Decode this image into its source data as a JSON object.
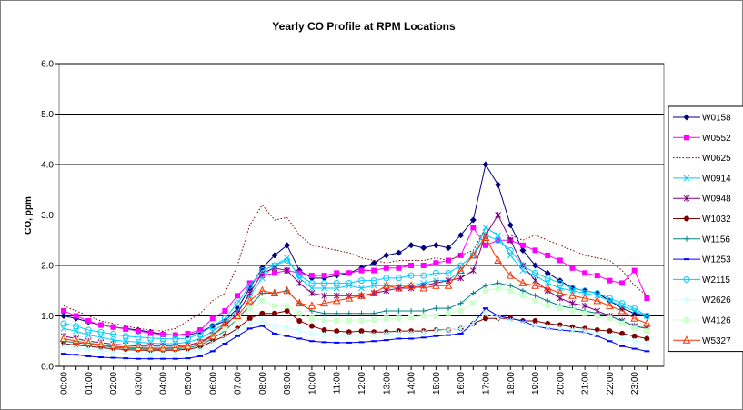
{
  "chart_data": {
    "type": "line",
    "title": "Yearly CO Profile at RPM Locations",
    "y_label": "CO, ppm",
    "categories": [
      "00:00",
      null,
      "01:00",
      null,
      "02:00",
      null,
      "03:00",
      null,
      "04:00",
      null,
      "05:00",
      null,
      "06:00",
      null,
      "07:00",
      null,
      "08:00",
      null,
      "09:00",
      null,
      "10:00",
      null,
      "11:00",
      null,
      "12:00",
      null,
      "13:00",
      null,
      "14:00",
      null,
      "15:00",
      null,
      "16:00",
      null,
      "17:00",
      null,
      "18:00",
      null,
      "19:00",
      null,
      "20:00",
      null,
      "21:00",
      null,
      "22:00",
      null,
      "23:00",
      null
    ],
    "ylim": [
      0,
      6
    ],
    "yticks": [
      {
        "value": 0,
        "label": "0.0"
      },
      {
        "value": 1,
        "label": "1.0"
      },
      {
        "value": 2,
        "label": "2.0"
      },
      {
        "value": 3,
        "label": "3.0"
      },
      {
        "value": 4,
        "label": "4.0"
      },
      {
        "value": 5,
        "label": "5.0"
      },
      {
        "value": 6,
        "label": "6.0"
      }
    ],
    "grid": true,
    "legend": "right",
    "series": [
      {
        "name": "W0158",
        "color": "#000080",
        "marker": "diamond",
        "values": [
          1.0,
          0.95,
          0.88,
          0.82,
          0.78,
          0.75,
          0.72,
          0.68,
          0.64,
          0.62,
          0.62,
          0.68,
          0.8,
          0.9,
          1.15,
          1.55,
          1.95,
          2.2,
          2.4,
          1.9,
          1.75,
          1.75,
          1.8,
          1.85,
          1.95,
          2.05,
          2.2,
          2.25,
          2.4,
          2.35,
          2.4,
          2.35,
          2.6,
          2.9,
          4.0,
          3.6,
          2.8,
          2.3,
          2.0,
          1.85,
          1.7,
          1.55,
          1.5,
          1.45,
          1.3,
          1.15,
          1.05,
          1.0
        ]
      },
      {
        "name": "W0552",
        "color": "#ff00ff",
        "marker": "square",
        "values": [
          1.1,
          1.0,
          0.9,
          0.82,
          0.78,
          0.74,
          0.7,
          0.66,
          0.63,
          0.62,
          0.65,
          0.72,
          0.95,
          1.1,
          1.4,
          1.65,
          1.8,
          1.85,
          1.9,
          1.85,
          1.8,
          1.8,
          1.85,
          1.85,
          1.9,
          1.9,
          1.95,
          1.95,
          2.0,
          2.0,
          2.05,
          2.1,
          2.2,
          2.75,
          2.4,
          2.5,
          2.5,
          2.4,
          2.3,
          2.2,
          2.1,
          1.95,
          1.85,
          1.8,
          1.7,
          1.65,
          1.9,
          1.35
        ]
      },
      {
        "name": "W0625",
        "color": "#800000",
        "marker": "none",
        "dash": "dotted",
        "values": [
          1.2,
          1.1,
          1.0,
          0.9,
          0.85,
          0.8,
          0.75,
          0.72,
          0.7,
          0.75,
          0.9,
          1.05,
          1.3,
          1.45,
          2.0,
          2.8,
          3.2,
          2.9,
          2.95,
          2.6,
          2.4,
          2.35,
          2.3,
          2.25,
          2.15,
          2.1,
          2.05,
          2.1,
          2.1,
          2.1,
          2.15,
          2.1,
          2.2,
          2.3,
          2.75,
          2.6,
          2.6,
          2.5,
          2.6,
          2.5,
          2.4,
          2.3,
          2.2,
          2.15,
          2.1,
          1.9,
          1.6,
          1.4
        ]
      },
      {
        "name": "W0914",
        "color": "#00ccff",
        "marker": "x",
        "values": [
          0.75,
          0.7,
          0.62,
          0.58,
          0.52,
          0.5,
          0.48,
          0.46,
          0.45,
          0.45,
          0.48,
          0.55,
          0.7,
          0.85,
          1.1,
          1.4,
          1.75,
          2.0,
          2.15,
          1.75,
          1.55,
          1.55,
          1.55,
          1.6,
          1.55,
          1.6,
          1.6,
          1.6,
          1.6,
          1.65,
          1.7,
          1.7,
          1.9,
          2.2,
          2.75,
          2.6,
          2.2,
          1.9,
          1.8,
          1.65,
          1.55,
          1.5,
          1.45,
          1.4,
          1.3,
          1.2,
          1.1,
          1.0
        ]
      },
      {
        "name": "W0948",
        "color": "#800080",
        "marker": "star",
        "values": [
          0.6,
          0.55,
          0.5,
          0.47,
          0.44,
          0.42,
          0.4,
          0.4,
          0.4,
          0.4,
          0.42,
          0.48,
          0.62,
          0.8,
          1.05,
          1.45,
          1.85,
          1.95,
          1.9,
          1.65,
          1.45,
          1.4,
          1.4,
          1.4,
          1.4,
          1.45,
          1.5,
          1.55,
          1.55,
          1.6,
          1.65,
          1.7,
          1.75,
          1.9,
          2.6,
          3.0,
          2.5,
          2.0,
          1.7,
          1.5,
          1.35,
          1.25,
          1.2,
          1.1,
          1.0,
          0.9,
          0.8,
          0.75
        ]
      },
      {
        "name": "W1032",
        "color": "#800000",
        "marker": "circle",
        "values": [
          0.45,
          0.42,
          0.4,
          0.37,
          0.35,
          0.33,
          0.32,
          0.32,
          0.32,
          0.32,
          0.34,
          0.38,
          0.5,
          0.6,
          0.75,
          0.95,
          1.05,
          1.05,
          1.1,
          0.9,
          0.8,
          0.72,
          0.7,
          0.68,
          0.7,
          0.68,
          0.68,
          0.7,
          0.7,
          0.7,
          0.72,
          0.72,
          0.75,
          0.85,
          0.95,
          0.95,
          0.95,
          0.9,
          0.9,
          0.85,
          0.82,
          0.78,
          0.75,
          0.72,
          0.7,
          0.65,
          0.6,
          0.55
        ]
      },
      {
        "name": "W1156",
        "color": "#008080",
        "marker": "plus",
        "values": [
          0.5,
          0.47,
          0.44,
          0.41,
          0.38,
          0.36,
          0.35,
          0.34,
          0.34,
          0.35,
          0.37,
          0.42,
          0.55,
          0.7,
          0.95,
          1.2,
          1.45,
          1.45,
          1.5,
          1.25,
          1.1,
          1.05,
          1.05,
          1.05,
          1.05,
          1.05,
          1.1,
          1.1,
          1.1,
          1.1,
          1.15,
          1.15,
          1.25,
          1.45,
          1.6,
          1.65,
          1.6,
          1.5,
          1.4,
          1.3,
          1.2,
          1.15,
          1.1,
          1.05,
          1.0,
          0.9,
          0.8,
          0.75
        ]
      },
      {
        "name": "W1253",
        "color": "#0000ff",
        "marker": "dash",
        "values": [
          0.25,
          0.23,
          0.2,
          0.18,
          0.17,
          0.16,
          0.15,
          0.15,
          0.15,
          0.15,
          0.16,
          0.2,
          0.3,
          0.45,
          0.6,
          0.75,
          0.8,
          0.65,
          0.6,
          0.55,
          0.5,
          0.48,
          0.47,
          0.47,
          0.48,
          0.5,
          0.52,
          0.55,
          0.55,
          0.57,
          0.6,
          0.62,
          0.65,
          0.85,
          1.15,
          1.0,
          0.95,
          0.9,
          0.8,
          0.75,
          0.72,
          0.7,
          0.68,
          0.6,
          0.5,
          0.4,
          0.35,
          0.3
        ]
      },
      {
        "name": "W2115",
        "color": "#00ccff",
        "marker": "opencircle",
        "values": [
          0.85,
          0.8,
          0.72,
          0.68,
          0.64,
          0.6,
          0.58,
          0.56,
          0.55,
          0.54,
          0.56,
          0.64,
          0.8,
          0.95,
          1.25,
          1.6,
          1.9,
          2.0,
          2.1,
          1.8,
          1.65,
          1.65,
          1.65,
          1.65,
          1.7,
          1.7,
          1.75,
          1.75,
          1.8,
          1.8,
          1.85,
          1.85,
          2.0,
          2.2,
          2.6,
          2.5,
          2.3,
          2.0,
          1.85,
          1.75,
          1.65,
          1.55,
          1.5,
          1.45,
          1.35,
          1.25,
          1.15,
          1.0
        ]
      },
      {
        "name": "W2626",
        "color": "#ccffff",
        "marker": "star",
        "values": [
          0.4,
          0.37,
          0.34,
          0.31,
          0.28,
          0.26,
          0.25,
          0.24,
          0.24,
          0.25,
          0.27,
          0.32,
          0.45,
          0.55,
          0.7,
          0.85,
          0.9,
          0.8,
          0.78,
          0.7,
          0.65,
          0.62,
          0.6,
          0.6,
          0.6,
          0.62,
          0.63,
          0.65,
          0.65,
          0.67,
          0.7,
          0.72,
          0.75,
          0.85,
          1.05,
          0.95,
          0.9,
          0.85,
          0.8,
          0.78,
          0.75,
          0.72,
          0.7,
          0.65,
          0.6,
          0.55,
          0.5,
          0.45
        ]
      },
      {
        "name": "W4126",
        "color": "#ccffcc",
        "marker": "square",
        "values": [
          0.55,
          0.52,
          0.48,
          0.45,
          0.42,
          0.4,
          0.38,
          0.37,
          0.37,
          0.38,
          0.4,
          0.46,
          0.6,
          0.75,
          0.95,
          1.15,
          1.3,
          1.2,
          1.2,
          1.05,
          0.95,
          0.92,
          0.9,
          0.9,
          0.9,
          0.92,
          0.95,
          0.95,
          0.97,
          1.0,
          1.0,
          1.05,
          1.1,
          1.25,
          1.5,
          1.55,
          1.5,
          1.4,
          1.3,
          1.2,
          1.15,
          1.1,
          1.05,
          1.0,
          0.95,
          0.85,
          0.75,
          0.7
        ]
      },
      {
        "name": "W5327",
        "color": "#ff3300",
        "marker": "triangle",
        "values": [
          0.55,
          0.5,
          0.46,
          0.43,
          0.4,
          0.38,
          0.37,
          0.36,
          0.36,
          0.37,
          0.4,
          0.46,
          0.6,
          0.85,
          1.0,
          1.3,
          1.5,
          1.45,
          1.5,
          1.25,
          1.2,
          1.25,
          1.3,
          1.35,
          1.4,
          1.45,
          1.6,
          1.55,
          1.6,
          1.55,
          1.6,
          1.6,
          1.9,
          2.2,
          2.55,
          2.1,
          1.8,
          1.65,
          1.6,
          1.55,
          1.45,
          1.4,
          1.35,
          1.3,
          1.2,
          1.1,
          0.95,
          0.85
        ]
      }
    ]
  }
}
